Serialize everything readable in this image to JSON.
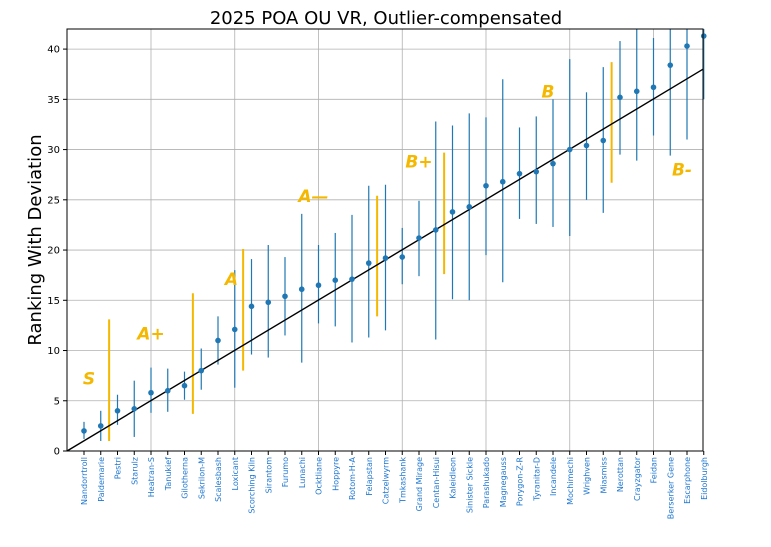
{
  "chart_data": {
    "type": "errorbar-scatter",
    "title": "2025 POA OU VR, Outlier-compensated",
    "xlabel": "",
    "ylabel": "Ranking With Deviation",
    "ylim": [
      0,
      42
    ],
    "yticks": [
      0,
      5,
      10,
      15,
      20,
      25,
      30,
      35,
      40
    ],
    "grid": true,
    "colors": {
      "point": "#1f77b4",
      "errorbar": "#1f77b4",
      "trend": "#000000",
      "tier": "#f5b800",
      "label": "#1f77d0",
      "grid": "#b0b0b0"
    },
    "trendline": {
      "start": [
        0,
        0
      ],
      "end": [
        38,
        38
      ]
    },
    "categories": [
      "Nandorrtroll",
      "Paldemarie",
      "Pestri",
      "Starulz",
      "Heatran-S",
      "Tanukief",
      "Gilotherna",
      "Sekrilon-M",
      "Scalesbash",
      "Loxicant",
      "Scorching Kiln",
      "Sirantom",
      "Furumo",
      "Lunachi",
      "Ocktliane",
      "Hoppyre",
      "Rotom-H-A",
      "Felapstan",
      "Catzelwyrm",
      "Tmkashank",
      "Grand Mirage",
      "Centan-Hisui",
      "Kaleidleon",
      "Sinister Sickle",
      "Parashukado",
      "Magnegauss",
      "Porygon-Z-R",
      "Tyranitar-D",
      "Incandele",
      "Mochimechi",
      "Wrighven",
      "Miasmiss",
      "Nerottan",
      "Crayzgator",
      "Feidan",
      "Berserker Gene",
      "Escarphone",
      "Eidolburgh"
    ],
    "series": [
      {
        "name": "Ranking",
        "values": [
          2.0,
          2.5,
          4.0,
          4.2,
          5.8,
          6.0,
          6.5,
          8.0,
          11.0,
          12.1,
          14.4,
          14.8,
          15.4,
          16.1,
          16.5,
          17.0,
          17.1,
          18.7,
          19.2,
          19.3,
          21.2,
          22.0,
          23.8,
          24.3,
          26.4,
          26.8,
          27.6,
          27.8,
          28.6,
          30.0,
          30.4,
          30.9,
          35.2,
          35.8,
          36.2,
          38.4,
          40.3,
          41.3
        ],
        "lower": [
          1.2,
          1.0,
          2.6,
          1.4,
          3.8,
          3.9,
          5.1,
          6.1,
          8.6,
          6.3,
          9.6,
          9.3,
          11.5,
          8.8,
          12.7,
          12.4,
          10.8,
          11.3,
          12.0,
          16.6,
          17.4,
          11.1,
          15.1,
          15.0,
          19.5,
          16.8,
          23.1,
          22.6,
          22.3,
          21.4,
          25.0,
          23.7,
          29.5,
          28.9,
          31.4,
          29.4,
          31.0,
          35.0
        ],
        "upper": [
          2.9,
          4.0,
          5.6,
          7.0,
          8.3,
          8.2,
          7.9,
          10.2,
          13.4,
          18.0,
          19.1,
          20.5,
          19.3,
          23.6,
          20.5,
          21.7,
          23.5,
          26.4,
          26.5,
          22.2,
          24.9,
          32.8,
          32.4,
          33.6,
          33.2,
          37.0,
          32.2,
          33.3,
          35.0,
          39.0,
          35.7,
          38.2,
          40.8,
          42.0,
          41.1,
          42.0,
          42.0,
          42.0
        ]
      }
    ],
    "tier_dividers": [
      {
        "after_index": 1,
        "ymin": 1.0,
        "ymax": 13.1
      },
      {
        "after_index": 6,
        "ymin": 3.7,
        "ymax": 15.7
      },
      {
        "after_index": 9,
        "ymin": 8.0,
        "ymax": 20.1
      },
      {
        "after_index": 17,
        "ymin": 13.4,
        "ymax": 25.4
      },
      {
        "after_index": 21,
        "ymin": 17.6,
        "ymax": 29.7
      },
      {
        "after_index": 31,
        "ymin": 26.7,
        "ymax": 38.7
      }
    ],
    "tier_labels": [
      {
        "text": "S",
        "cx": 0.3,
        "cy": 7.2
      },
      {
        "text": "A+",
        "cx": 4.0,
        "cy": 11.7
      },
      {
        "text": "A",
        "cx": 8.8,
        "cy": 17.1
      },
      {
        "text": "A—",
        "cx": 13.7,
        "cy": 25.4
      },
      {
        "text": "B+",
        "cx": 20.0,
        "cy": 28.8
      },
      {
        "text": "B",
        "cx": 27.7,
        "cy": 35.8
      },
      {
        "text": "B-",
        "cx": 35.7,
        "cy": 28.0
      }
    ]
  }
}
